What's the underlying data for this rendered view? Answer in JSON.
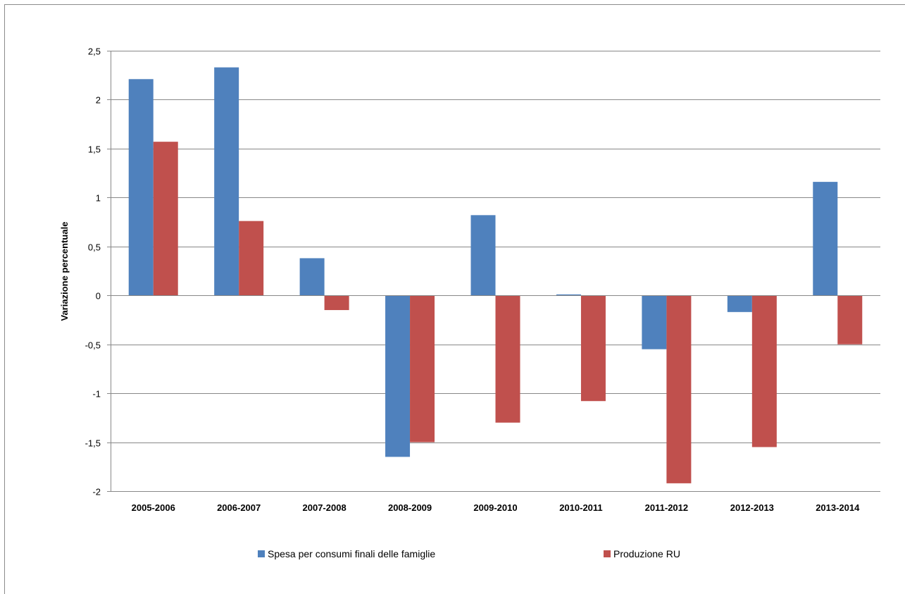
{
  "chart_data": {
    "type": "bar",
    "title": "",
    "xlabel": "",
    "ylabel": "Variazione percentuale",
    "ylim": [
      -2,
      2.5
    ],
    "yticks": [
      2.5,
      2,
      1.5,
      1,
      0.5,
      0,
      -0.5,
      -1,
      -1.5,
      -2
    ],
    "ytick_labels": [
      "2,5",
      "2",
      "1,5",
      "1",
      "0,5",
      "0",
      "-0,5",
      "-1",
      "-1,5",
      "-2"
    ],
    "grid": true,
    "legend_position": "bottom",
    "categories": [
      "2005-2006",
      "2006-2007",
      "2007-2008",
      "2008-2009",
      "2009-2010",
      "2010-2011",
      "2011-2012",
      "2012-2013",
      "2013-2014"
    ],
    "series": [
      {
        "name": "Spesa per consumi finali delle famiglie",
        "color": "#4f81bd",
        "values": [
          2.21,
          2.33,
          0.38,
          -1.65,
          0.82,
          0.01,
          -0.55,
          -0.17,
          1.16
        ]
      },
      {
        "name": "Produzione RU",
        "color": "#c0504d",
        "values": [
          1.57,
          0.76,
          -0.15,
          -1.5,
          -1.3,
          -1.08,
          -1.92,
          -1.55,
          -0.5
        ]
      }
    ]
  }
}
